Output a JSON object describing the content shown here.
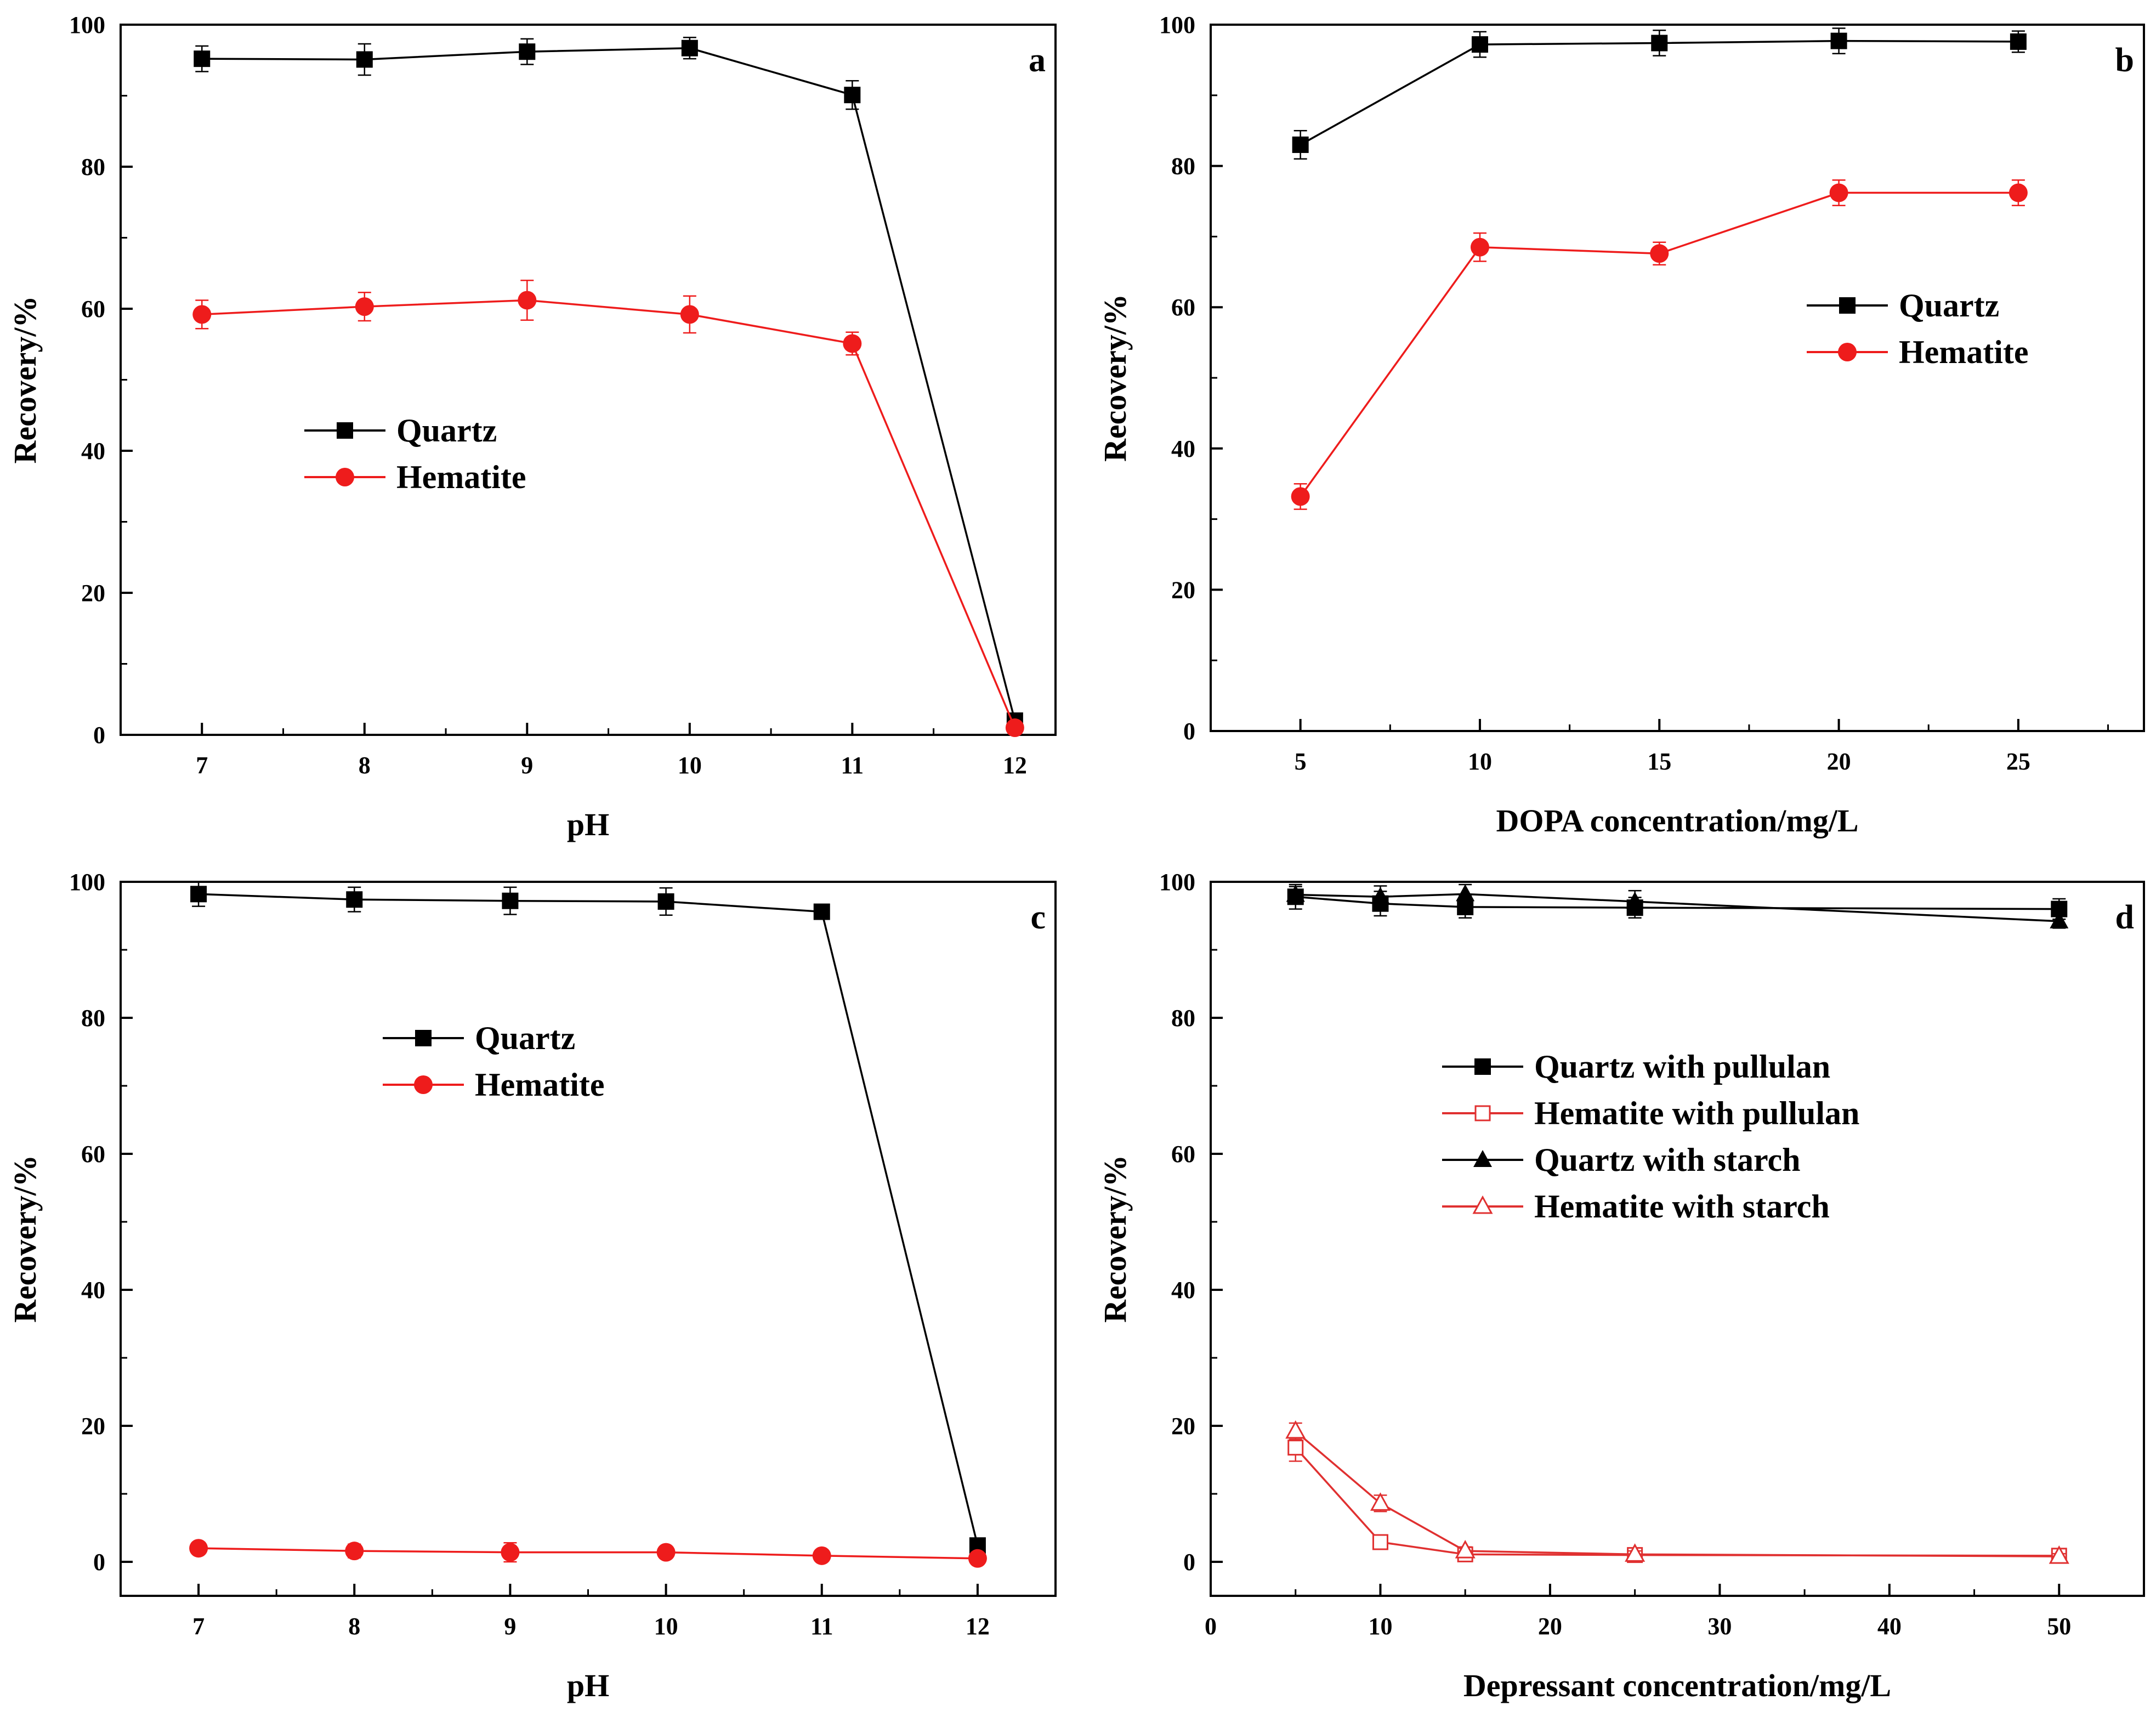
{
  "chart_data": [
    {
      "type": "line",
      "panel_label": "a",
      "xlabel": "pH",
      "ylabel": "Recovery/%",
      "xlim": [
        6.5,
        12.25
      ],
      "ylim": [
        0,
        100
      ],
      "x_ticks": [
        7,
        8,
        9,
        10,
        11,
        12
      ],
      "y_ticks": [
        0,
        20,
        40,
        60,
        80,
        100
      ],
      "legend_position": "center-left",
      "series": [
        {
          "name": "Quartz",
          "marker": "square-filled",
          "color": "#000000",
          "x": [
            7,
            8,
            9,
            10,
            11,
            12
          ],
          "y": [
            95.2,
            95.1,
            96.2,
            96.7,
            90.1,
            2.0
          ],
          "err": [
            1.8,
            2.2,
            1.8,
            1.5,
            2.0,
            0.5
          ]
        },
        {
          "name": "Hematite",
          "marker": "circle-filled",
          "color": "#ee1c1c",
          "x": [
            7,
            8,
            9,
            10,
            11,
            12
          ],
          "y": [
            59.2,
            60.3,
            61.2,
            59.2,
            55.1,
            1.0
          ],
          "err": [
            2.0,
            2.0,
            2.8,
            2.6,
            1.6,
            0.3
          ]
        }
      ]
    },
    {
      "type": "line",
      "panel_label": "b",
      "xlabel": "DOPA concentration/mg/L",
      "ylabel": "Recovery/%",
      "xlim": [
        2.5,
        28.5
      ],
      "ylim": [
        0,
        100
      ],
      "x_ticks": [
        5,
        10,
        15,
        20,
        25
      ],
      "y_ticks": [
        0,
        20,
        40,
        60,
        80,
        100
      ],
      "legend_position": "center-right",
      "series": [
        {
          "name": "Quartz",
          "marker": "square-filled",
          "color": "#000000",
          "x": [
            5,
            10,
            15,
            20,
            25
          ],
          "y": [
            83.0,
            97.2,
            97.4,
            97.7,
            97.6
          ],
          "err": [
            2.0,
            1.8,
            1.8,
            1.8,
            1.5
          ]
        },
        {
          "name": "Hematite",
          "marker": "circle-filled",
          "color": "#ee1c1c",
          "x": [
            5,
            10,
            15,
            20,
            25
          ],
          "y": [
            33.2,
            68.5,
            67.6,
            76.2,
            76.2
          ],
          "err": [
            1.8,
            2.0,
            1.6,
            1.8,
            1.8
          ]
        }
      ]
    },
    {
      "type": "line",
      "panel_label": "c",
      "xlabel": "pH",
      "ylabel": "Recovery/%",
      "xlim": [
        6.5,
        12.5
      ],
      "ylim": [
        -5,
        100
      ],
      "x_ticks": [
        7,
        8,
        9,
        10,
        11,
        12
      ],
      "y_ticks": [
        0,
        20,
        40,
        60,
        80,
        100
      ],
      "legend_position": "top-center",
      "series": [
        {
          "name": "Quartz",
          "marker": "square-filled",
          "color": "#000000",
          "x": [
            7,
            8,
            9,
            10,
            11,
            12
          ],
          "y": [
            98.2,
            97.4,
            97.2,
            97.1,
            95.6,
            2.4
          ],
          "err": [
            1.8,
            1.8,
            2.0,
            2.0,
            0.8,
            0.5
          ]
        },
        {
          "name": "Hematite",
          "marker": "circle-filled",
          "color": "#ee1c1c",
          "x": [
            7,
            8,
            9,
            10,
            11,
            12
          ],
          "y": [
            2.0,
            1.6,
            1.4,
            1.4,
            0.9,
            0.5
          ],
          "err": [
            0.8,
            1.0,
            1.4,
            0.8,
            0.6,
            0.4
          ]
        }
      ]
    },
    {
      "type": "line",
      "panel_label": "d",
      "xlabel": "Depressant concentration/mg/L",
      "ylabel": "Recovery/%",
      "xlim": [
        0,
        55
      ],
      "ylim": [
        -5,
        100
      ],
      "x_ticks": [
        0,
        10,
        20,
        30,
        40,
        50
      ],
      "y_ticks": [
        0,
        20,
        40,
        60,
        80,
        100
      ],
      "legend_position": "upper-center",
      "series": [
        {
          "name": "Quartz with pullulan",
          "marker": "square-filled",
          "color": "#000000",
          "x": [
            5,
            10,
            15,
            25,
            50
          ],
          "y": [
            97.8,
            96.8,
            96.3,
            96.2,
            96.0
          ],
          "err": [
            1.8,
            1.8,
            1.6,
            1.5,
            1.5
          ]
        },
        {
          "name": "Hematite with pullulan",
          "marker": "square-open",
          "color": "#e03030",
          "x": [
            5,
            10,
            15,
            25,
            50
          ],
          "y": [
            16.8,
            2.9,
            1.1,
            1.0,
            0.9
          ],
          "err": [
            2.0,
            0.8,
            0.6,
            0.5,
            0.4
          ]
        },
        {
          "name": "Quartz with starch",
          "marker": "triangle-filled",
          "color": "#000000",
          "x": [
            5,
            10,
            15,
            25,
            50
          ],
          "y": [
            98.1,
            97.8,
            98.2,
            97.1,
            94.2
          ],
          "err": [
            1.2,
            1.6,
            1.4,
            1.6,
            1.0
          ]
        },
        {
          "name": "Hematite with starch",
          "marker": "triangle-open",
          "color": "#e03030",
          "x": [
            5,
            10,
            15,
            25,
            50
          ],
          "y": [
            19.2,
            8.6,
            1.6,
            1.1,
            0.8
          ],
          "err": [
            1.2,
            1.2,
            0.6,
            0.5,
            0.4
          ]
        }
      ]
    }
  ]
}
